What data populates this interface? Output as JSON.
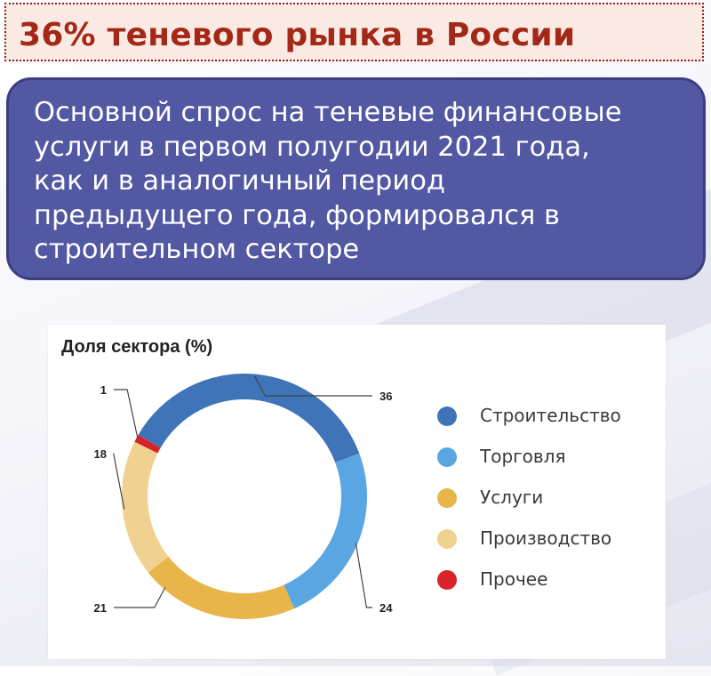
{
  "header": {
    "title": "36% теневого рынка в России"
  },
  "summary": {
    "lines": [
      "Основной спрос на теневые финансовые",
      "услуги в первом полугодии 2021 года,",
      "как и в аналогичный период",
      "предыдущего года, формировался в",
      "строительном секторе"
    ]
  },
  "chart_data": {
    "type": "pie",
    "donut": true,
    "title": "Доля сектора (%)",
    "legend_position": "right",
    "slices": [
      {
        "name": "Строительство",
        "value": 36,
        "color": "#3f74b8"
      },
      {
        "name": "Торговля",
        "value": 24,
        "color": "#5aa6e2"
      },
      {
        "name": "Услуги",
        "value": 21,
        "color": "#e8b54b"
      },
      {
        "name": "Производство",
        "value": 18,
        "color": "#f1d18f"
      },
      {
        "name": "Прочее",
        "value": 1,
        "color": "#d8232a"
      }
    ]
  }
}
